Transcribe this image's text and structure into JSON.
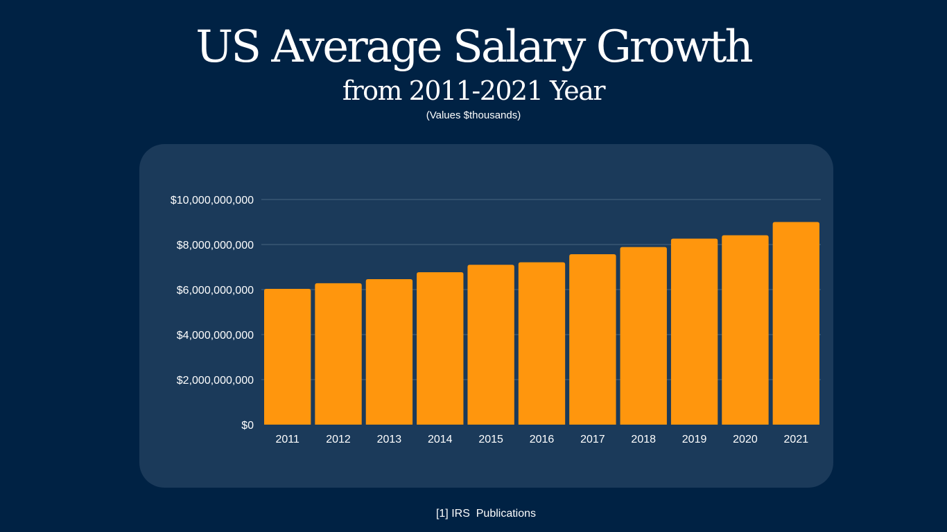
{
  "header": {
    "title": "US Average Salary Growth",
    "subtitle": "from 2011-2021 Year",
    "note": "(Values $thousands)"
  },
  "footer": {
    "source": "[1] IRS  Publications"
  },
  "colors": {
    "background": "#002244",
    "panel": "#1b3a5a",
    "bar": "#ff960d",
    "gridline": "#4a6580",
    "text": "#ffffff"
  },
  "chart_data": {
    "type": "bar",
    "title": "US Average Salary Growth",
    "xlabel": "",
    "ylabel": "",
    "ylim": [
      0,
      10000000000
    ],
    "grid": true,
    "categories": [
      "2011",
      "2012",
      "2013",
      "2014",
      "2015",
      "2016",
      "2017",
      "2018",
      "2019",
      "2020",
      "2021"
    ],
    "series": [
      {
        "name": "Average Salary",
        "values": [
          6030000000,
          6280000000,
          6460000000,
          6770000000,
          7100000000,
          7210000000,
          7570000000,
          7890000000,
          8260000000,
          8410000000,
          9000000000
        ]
      }
    ],
    "yticks": [
      0,
      2000000000,
      4000000000,
      6000000000,
      8000000000,
      10000000000
    ],
    "ytick_labels": [
      "$0",
      "$2,000,000,000",
      "$4,000,000,000",
      "$6,000,000,000",
      "$8,000,000,000",
      "$10,000,000,000"
    ]
  }
}
